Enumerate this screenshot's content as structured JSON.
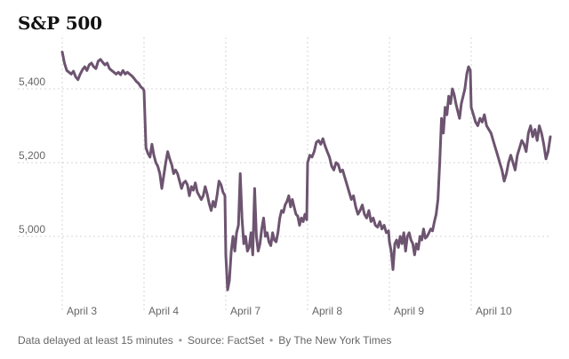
{
  "chart_data": {
    "type": "line",
    "title": "S&P 500",
    "xlabel": "",
    "ylabel": "",
    "y_ticks": [
      5000,
      5200,
      5400
    ],
    "y_tick_labels": [
      "5,000",
      "5,200",
      "5,400"
    ],
    "ylim": [
      4820,
      5540
    ],
    "x_ticks": [
      "April 3",
      "April 4",
      "April 7",
      "April 8",
      "April 9",
      "April 10"
    ],
    "grid": "vertical-dotted",
    "series": [
      {
        "color": "#6d5470",
        "days": [
          {
            "label": "April 3",
            "values": [
              5500,
              5470,
              5450,
              5445,
              5440,
              5448,
              5432,
              5425,
              5440,
              5452,
              5460,
              5450,
              5465,
              5470,
              5460,
              5455,
              5475,
              5480,
              5472,
              5465,
              5470,
              5455,
              5450,
              5445,
              5440,
              5445,
              5438,
              5450,
              5440,
              5445,
              5440,
              5435,
              5428,
              5420,
              5415,
              5405,
              5400
            ]
          },
          {
            "label": "April 4",
            "values": [
              5395,
              5240,
              5225,
              5215,
              5250,
              5220,
              5200,
              5190,
              5170,
              5130,
              5165,
              5200,
              5230,
              5210,
              5195,
              5170,
              5180,
              5170,
              5150,
              5130,
              5145,
              5150,
              5140,
              5110,
              5135,
              5125,
              5145,
              5120,
              5110,
              5100,
              5110,
              5135,
              5115,
              5090,
              5070,
              5095,
              5080,
              5110,
              5150,
              5140,
              5120,
              5110
            ]
          },
          {
            "label": "April 7",
            "values": [
              4950,
              4855,
              4880,
              4960,
              5000,
              4960,
              5010,
              5030,
              5170,
              5050,
              4980,
              5000,
              4960,
              4970,
              5010,
              4950,
              5130,
              5000,
              4960,
              4980,
              5020,
              5050,
              5000,
              5010,
              4985,
              4975,
              5010,
              4990,
              4985,
              5010,
              5050,
              5070,
              5065,
              5085,
              5095,
              5110,
              5080,
              5100,
              5080,
              5060,
              5055,
              5030,
              5050,
              5040,
              5060,
              5045
            ]
          },
          {
            "label": "April 8",
            "values": [
              5200,
              5220,
              5215,
              5230,
              5255,
              5260,
              5250,
              5265,
              5245,
              5230,
              5215,
              5190,
              5180,
              5200,
              5195,
              5175,
              5180,
              5160,
              5140,
              5120,
              5100,
              5110,
              5080,
              5060,
              5070,
              5085,
              5060,
              5050,
              5070,
              5040,
              5050,
              5030,
              5025,
              5040,
              5020,
              5030,
              5010,
              5015
            ]
          },
          {
            "label": "April 9",
            "values": [
              4985,
              4960,
              4910,
              4980,
              4990,
              4970,
              5000,
              4980,
              5010,
              4960,
              5000,
              5010,
              4990,
              4980,
              4950,
              4980,
              4965,
              5000,
              4990,
              5020,
              4995,
              5000,
              5010,
              5020,
              5015,
              5040,
              5060,
              5100,
              5200,
              5320,
              5280,
              5350,
              5330,
              5380,
              5360,
              5400,
              5385,
              5360,
              5340,
              5320,
              5360,
              5380,
              5400,
              5440,
              5460,
              5450
            ]
          },
          {
            "label": "April 10",
            "values": [
              5350,
              5330,
              5310,
              5300,
              5320,
              5310,
              5330,
              5300,
              5290,
              5280,
              5260,
              5240,
              5220,
              5200,
              5180,
              5150,
              5170,
              5200,
              5220,
              5200,
              5180,
              5220,
              5240,
              5260,
              5250,
              5230,
              5280,
              5300,
              5270,
              5290,
              5260,
              5300,
              5280,
              5250,
              5210,
              5230,
              5270
            ]
          }
        ]
      }
    ]
  },
  "footer": {
    "delay_note": "Data delayed at least 15 minutes",
    "source": "Source: FactSet",
    "credit": "By The New York Times",
    "separator": "•"
  }
}
